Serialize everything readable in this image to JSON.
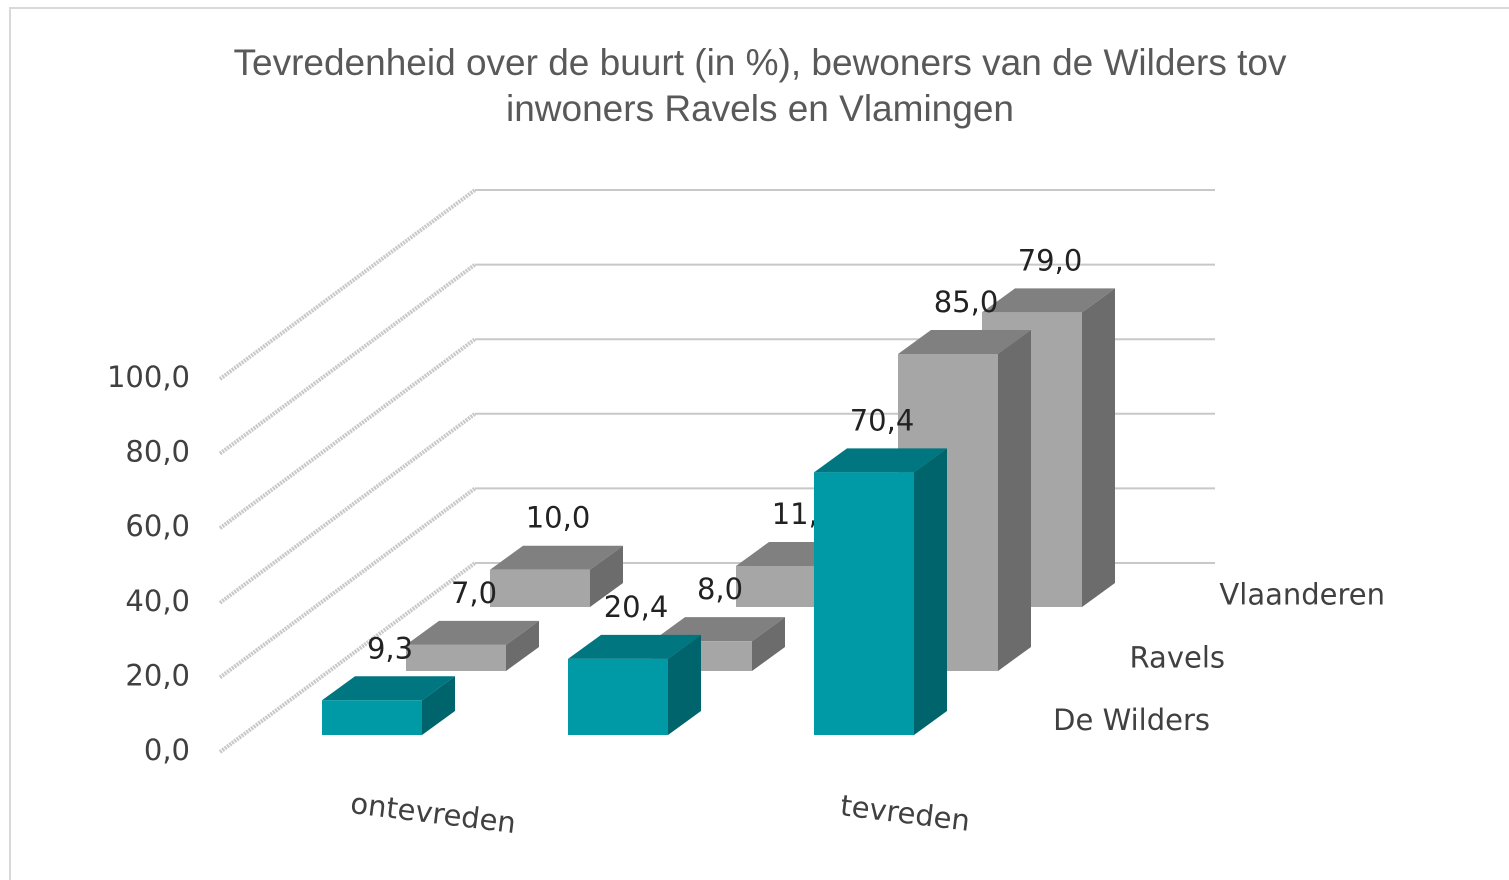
{
  "chart_data": {
    "type": "bar3d",
    "title": "Tevredenheid over de buurt (in %), bewoners van de Wilders tov inwoners Ravels en Vlamingen",
    "categories": [
      "ontevreden",
      null,
      "tevreden"
    ],
    "series": [
      {
        "name": "De Wilders",
        "color": "#009aa6",
        "values": [
          9.3,
          20.4,
          70.4
        ],
        "value_labels": [
          "9,3",
          "20,4",
          "70,4"
        ]
      },
      {
        "name": "Ravels",
        "color": "#a6a6a6",
        "values": [
          7.0,
          8.0,
          85.0
        ],
        "value_labels": [
          "7,0",
          "8,0",
          "85,0"
        ]
      },
      {
        "name": "Vlaanderen",
        "color": "#a6a6a6",
        "values": [
          10.0,
          11.0,
          79.0
        ],
        "value_labels": [
          "10,0",
          "11,0",
          "79,0"
        ]
      }
    ],
    "ylim": [
      0,
      100
    ],
    "yticks": [
      {
        "value": 0,
        "label": "0,0"
      },
      {
        "value": 20,
        "label": "20,0"
      },
      {
        "value": 40,
        "label": "40,0"
      },
      {
        "value": 60,
        "label": "60,0"
      },
      {
        "value": 80,
        "label": "80,0"
      },
      {
        "value": 100,
        "label": "100,0"
      }
    ],
    "grid": true
  }
}
